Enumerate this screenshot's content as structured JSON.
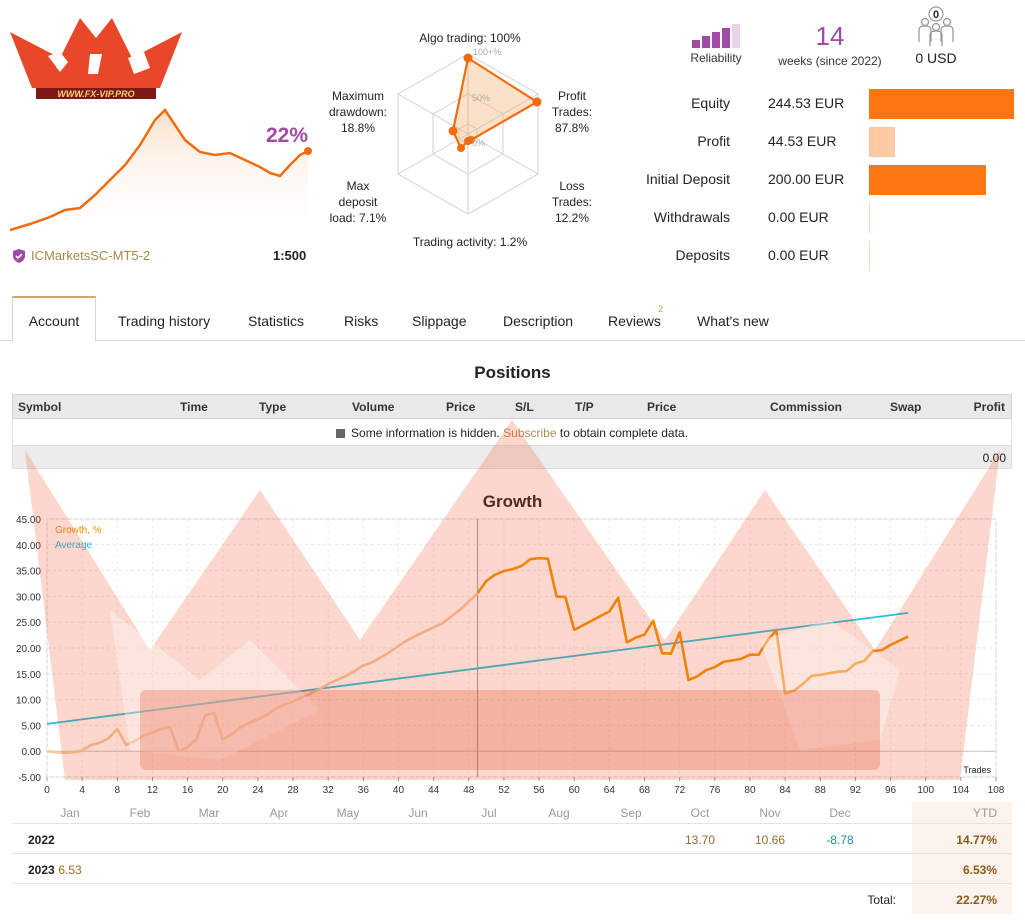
{
  "logo": {
    "text": "WWW.FX-VIP.PRO"
  },
  "header": {
    "gain": "22%",
    "broker": "ICMarketsSC-MT5-2",
    "leverage": "1:500"
  },
  "radar": {
    "algo": "Algo trading: 100%",
    "profit": [
      "Profit",
      "Trades:",
      "87.8%"
    ],
    "loss": [
      "Loss",
      "Trades:",
      "12.2%"
    ],
    "activity": "Trading activity: 1.2%",
    "load": [
      "Max",
      "deposit",
      "load: 7.1%"
    ],
    "drawdown": [
      "Maximum",
      "drawdown:",
      "18.8%"
    ],
    "ring_labels": [
      "100+%",
      "50%",
      "0%"
    ]
  },
  "reliability": {
    "label": "Reliability",
    "filled_bars": 4,
    "total_bars": 5
  },
  "weeks": {
    "number": "14",
    "label": "weeks (since 2022)"
  },
  "subscribers": {
    "count": "0",
    "label": "0 USD"
  },
  "stats": [
    {
      "label": "Equity",
      "value": "244.53 EUR",
      "fraction": 1.0,
      "color": "#ff7613"
    },
    {
      "label": "Profit",
      "value": "44.53 EUR",
      "fraction": 0.18,
      "color": "#ffc9a3"
    },
    {
      "label": "Initial Deposit",
      "value": "200.00 EUR",
      "fraction": 0.81,
      "color": "#ff7613"
    },
    {
      "label": "Withdrawals",
      "value": "0.00 EUR",
      "fraction": 0.0,
      "color": "#f3d6c0"
    },
    {
      "label": "Deposits",
      "value": "0.00 EUR",
      "fraction": 0.0,
      "color": "#f3d6c0"
    }
  ],
  "tabs": [
    "Account",
    "Trading history",
    "Statistics",
    "Risks",
    "Slippage",
    "Description",
    "Reviews",
    "What's new"
  ],
  "reviews_badge": "2",
  "positions": {
    "title": "Positions",
    "columns": [
      "Symbol",
      "Time",
      "Type",
      "Volume",
      "Price",
      "S/L",
      "T/P",
      "Price",
      "Commission",
      "Swap",
      "Profit"
    ],
    "hidden_text_1": "Some information is hidden.",
    "hidden_link": "Subscribe",
    "hidden_text_2": "to obtain complete data.",
    "total": "0.00"
  },
  "growth": {
    "title": "Growth"
  },
  "chart_data": {
    "type": "line",
    "title": "Growth",
    "xlabel": "Trades",
    "ylabel": "",
    "xlim": [
      0,
      108
    ],
    "ylim": [
      -5,
      45
    ],
    "x_ticks": [
      0,
      4,
      8,
      12,
      16,
      20,
      24,
      28,
      32,
      36,
      40,
      44,
      48,
      52,
      56,
      60,
      64,
      68,
      72,
      76,
      80,
      84,
      88,
      92,
      96,
      100,
      104,
      108
    ],
    "y_ticks": [
      "-5.00",
      "0.00",
      "5.00",
      "10.00",
      "15.00",
      "20.00",
      "25.00",
      "30.00",
      "35.00",
      "40.00",
      "45.00"
    ],
    "month_labels": [
      "Jan",
      "Feb",
      "Mar",
      "Apr",
      "May",
      "Jun",
      "Jul",
      "Aug",
      "Sep",
      "Oct",
      "Nov",
      "Dec"
    ],
    "legend": [
      "Growth, %",
      "Average"
    ],
    "legend_position": "top-left",
    "series": [
      {
        "name": "Growth, %",
        "color": "#f29100",
        "faded_until_x": 49,
        "x": [
          0,
          1,
          2,
          3,
          4,
          5,
          6,
          7,
          8,
          9,
          10,
          11,
          12,
          13,
          14,
          15,
          16,
          17,
          18,
          19,
          20,
          21,
          22,
          23,
          24,
          25,
          26,
          27,
          28,
          29,
          30,
          31,
          32,
          33,
          34,
          35,
          36,
          37,
          38,
          39,
          40,
          41,
          42,
          43,
          44,
          45,
          46,
          47,
          48,
          49,
          50,
          51,
          52,
          53,
          54,
          55,
          56,
          57,
          58,
          59,
          60,
          61,
          62,
          63,
          64,
          65,
          66,
          67,
          68,
          69,
          70,
          71,
          72,
          73,
          74,
          75,
          76,
          77,
          78,
          79,
          80,
          81,
          82,
          83,
          84,
          85,
          86,
          87,
          88,
          89,
          90,
          91,
          92,
          93,
          94,
          95,
          96,
          97,
          98
        ],
        "values": [
          0.0,
          -0.2,
          -0.3,
          -0.2,
          0.1,
          1.2,
          1.6,
          2.5,
          4.3,
          1.2,
          2.0,
          3.0,
          3.6,
          4.3,
          4.7,
          0.0,
          0.8,
          2.3,
          7.0,
          7.4,
          2.3,
          3.3,
          4.6,
          5.5,
          6.2,
          7.0,
          8.3,
          9.0,
          9.6,
          10.4,
          11.2,
          12.0,
          13.0,
          13.8,
          14.6,
          15.5,
          16.6,
          17.2,
          18.2,
          19.2,
          20.4,
          21.5,
          22.4,
          23.2,
          24.0,
          24.8,
          26.1,
          27.4,
          29.0,
          30.6,
          33.0,
          34.2,
          34.9,
          35.3,
          35.9,
          37.2,
          37.4,
          37.3,
          30.0,
          29.9,
          23.5,
          24.4,
          25.3,
          26.2,
          27.1,
          29.7,
          21.1,
          22.0,
          22.6,
          25.3,
          19.0,
          18.9,
          23.0,
          13.8,
          14.5,
          15.7,
          16.3,
          17.3,
          17.6,
          17.9,
          18.7,
          18.7,
          21.5,
          23.4,
          11.2,
          11.7,
          13.0,
          14.6,
          14.8,
          15.1,
          15.4,
          15.5,
          17.0,
          17.5,
          19.4,
          19.6,
          20.6,
          21.4,
          22.2
        ]
      },
      {
        "name": "Average",
        "color": "#1ec0e0",
        "x": [
          0,
          98
        ],
        "values": [
          5.3,
          26.8
        ]
      }
    ]
  },
  "monthly": {
    "months": [
      "Jan",
      "Feb",
      "Mar",
      "Apr",
      "May",
      "Jun",
      "Jul",
      "Aug",
      "Sep",
      "Oct",
      "Nov",
      "Dec"
    ],
    "ytd_label": "YTD",
    "rows": [
      {
        "year": "2022",
        "cells": [
          "",
          "",
          "",
          "",
          "",
          "",
          "",
          "",
          "",
          "13.70",
          "10.66",
          "-8.78"
        ],
        "ytd": "14.77%"
      },
      {
        "year": "2023",
        "cells": [
          "6.53",
          "",
          "",
          "",
          "",
          "",
          "",
          "",
          "",
          "",
          "",
          ""
        ],
        "ytd": "6.53%"
      }
    ],
    "total_label": "Total:",
    "total_value": "22.27%"
  }
}
